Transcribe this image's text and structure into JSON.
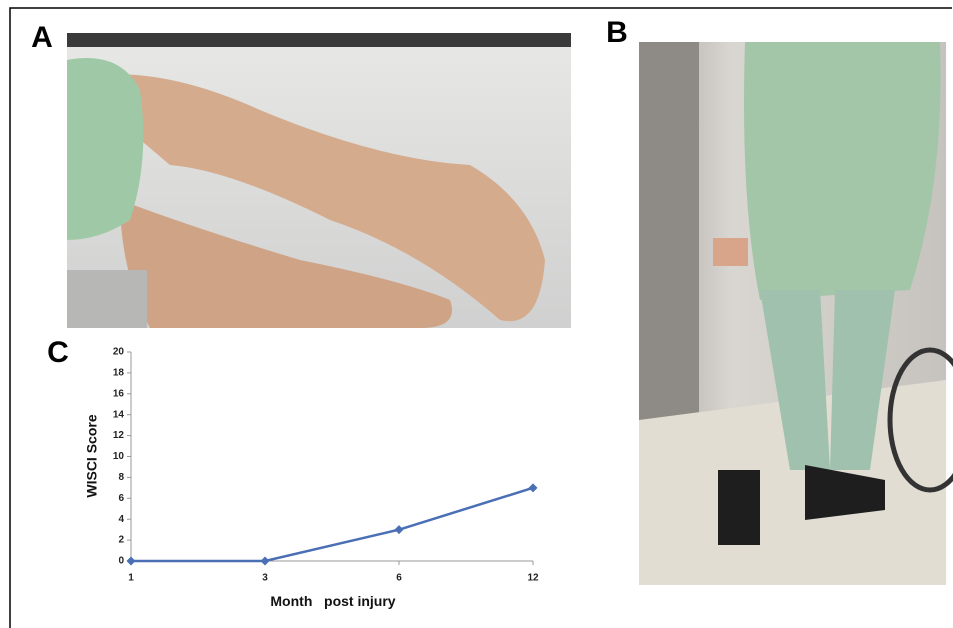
{
  "panels": [
    "A",
    "B",
    "C"
  ],
  "chart_data": {
    "type": "line",
    "ylabel": "WISCI Score",
    "xlabel": "Month   post injury",
    "categories": [
      "1",
      "3",
      "6",
      "12"
    ],
    "series": [
      {
        "name": "WISCI",
        "color": "#4a6fb5",
        "values": [
          0,
          0,
          3,
          7
        ]
      }
    ],
    "ylim": [
      0,
      20
    ],
    "yticks": [
      0,
      2,
      4,
      6,
      8,
      10,
      12,
      14,
      16,
      18,
      20
    ]
  }
}
